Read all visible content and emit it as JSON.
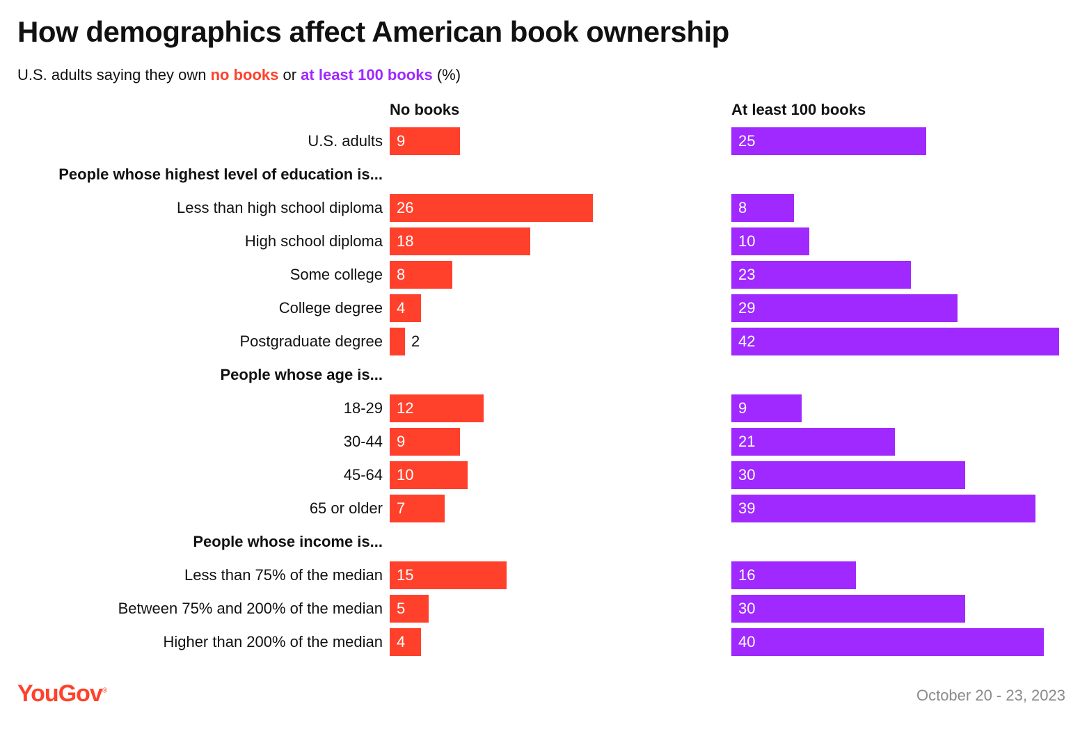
{
  "header": {
    "title": "How demographics affect American book ownership",
    "subtitle_prefix": "U.S. adults saying they own ",
    "subtitle_no": "no books",
    "subtitle_mid": " or ",
    "subtitle_many": "at least 100 books",
    "subtitle_suffix": " (%)"
  },
  "footer": {
    "logo_text": "YouGov",
    "logo_mark": "®",
    "date": "October 20 - 23, 2023"
  },
  "colors": {
    "no_books": "#FF412C",
    "at_least_100": "#9F29FF"
  },
  "chart_data": {
    "type": "bar",
    "orientation": "horizontal",
    "value_max": 42,
    "series": [
      {
        "name": "No books",
        "key": "no"
      },
      {
        "name": "At least 100 books",
        "key": "many"
      }
    ],
    "rows": [
      {
        "label": "U.S. adults",
        "no": 9,
        "many": 25
      },
      {
        "group": "People whose highest level of education is..."
      },
      {
        "label": "Less than high school diploma",
        "no": 26,
        "many": 8
      },
      {
        "label": "High school diploma",
        "no": 18,
        "many": 10
      },
      {
        "label": "Some college",
        "no": 8,
        "many": 23
      },
      {
        "label": "College degree",
        "no": 4,
        "many": 29
      },
      {
        "label": "Postgraduate degree",
        "no": 2,
        "many": 42
      },
      {
        "group": "People whose age is..."
      },
      {
        "label": "18-29",
        "no": 12,
        "many": 9
      },
      {
        "label": "30-44",
        "no": 9,
        "many": 21
      },
      {
        "label": "45-64",
        "no": 10,
        "many": 30
      },
      {
        "label": "65 or older",
        "no": 7,
        "many": 39
      },
      {
        "group": "People whose income is..."
      },
      {
        "label": "Less than 75% of the median",
        "no": 15,
        "many": 16
      },
      {
        "label": "Between 75% and 200% of the median",
        "no": 5,
        "many": 30
      },
      {
        "label": "Higher than 200% of the median",
        "no": 4,
        "many": 40
      }
    ]
  }
}
